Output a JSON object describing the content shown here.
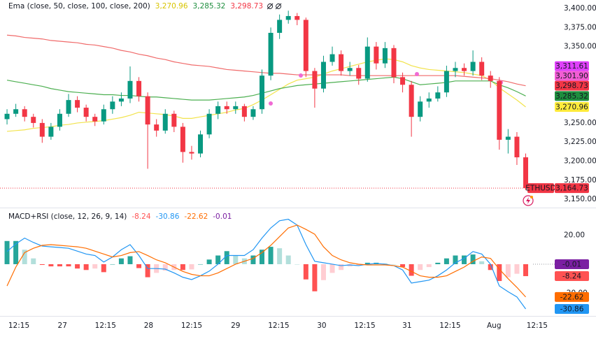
{
  "chart_data": [
    {
      "type": "candlestick",
      "title": "Ema (close, 50, close, 100, close, 200)",
      "symbol": "ETHUSD",
      "last_price_label": "3,164.73",
      "up_color": "#089981",
      "down_color": "#f23645",
      "xlim": [
        -0.8,
        62.7
      ],
      "ylim": [
        3141,
        3411
      ],
      "yticks": [
        {
          "value": 3400,
          "label": "3,400.00"
        },
        {
          "value": 3375,
          "label": "3,375.00"
        },
        {
          "value": 3350,
          "label": "3,350.00"
        },
        {
          "value": 3250,
          "label": "3,250.00"
        },
        {
          "value": 3225,
          "label": "3,225.00"
        },
        {
          "value": 3200,
          "label": "3,200.00"
        },
        {
          "value": 3175,
          "label": "3,175.00"
        },
        {
          "value": 3150,
          "label": "3,150.00"
        }
      ],
      "candles": {
        "open": [
          3255,
          3262,
          3268,
          3258,
          3250,
          3232,
          3245,
          3262,
          3280,
          3270,
          3258,
          3252,
          3268,
          3278,
          3282,
          3305,
          3285,
          3248,
          3240,
          3262,
          3245,
          3212,
          3210,
          3235,
          3262,
          3272,
          3268,
          3272,
          3258,
          3268,
          3312,
          3368,
          3385,
          3390,
          3385,
          3318,
          3295,
          3330,
          3340,
          3318,
          3322,
          3308,
          3350,
          3328,
          3348,
          3310,
          3300,
          3258,
          3278,
          3282,
          3290,
          3318,
          3322,
          3318,
          3330,
          3312,
          3305,
          3228,
          3232,
          3205
        ],
        "high": [
          3268,
          3275,
          3272,
          3262,
          3255,
          3250,
          3268,
          3288,
          3285,
          3274,
          3262,
          3274,
          3285,
          3290,
          3324,
          3310,
          3290,
          3255,
          3268,
          3266,
          3250,
          3220,
          3240,
          3268,
          3278,
          3278,
          3278,
          3275,
          3272,
          3320,
          3375,
          3392,
          3397,
          3394,
          3388,
          3322,
          3338,
          3350,
          3345,
          3330,
          3326,
          3362,
          3356,
          3356,
          3352,
          3316,
          3305,
          3285,
          3290,
          3298,
          3325,
          3330,
          3328,
          3345,
          3336,
          3318,
          3310,
          3242,
          3238,
          3210
        ],
        "low": [
          3248,
          3258,
          3252,
          3244,
          3224,
          3228,
          3240,
          3258,
          3264,
          3252,
          3246,
          3248,
          3262,
          3272,
          3276,
          3278,
          3190,
          3232,
          3236,
          3238,
          3198,
          3202,
          3205,
          3230,
          3255,
          3262,
          3262,
          3252,
          3254,
          3262,
          3306,
          3360,
          3380,
          3378,
          3310,
          3270,
          3290,
          3325,
          3312,
          3312,
          3300,
          3304,
          3320,
          3322,
          3302,
          3290,
          3232,
          3252,
          3270,
          3278,
          3284,
          3310,
          3312,
          3312,
          3306,
          3296,
          3215,
          3210,
          3195,
          3162
        ],
        "close": [
          3262,
          3268,
          3258,
          3250,
          3232,
          3245,
          3262,
          3280,
          3270,
          3258,
          3252,
          3268,
          3278,
          3282,
          3305,
          3285,
          3248,
          3240,
          3262,
          3245,
          3212,
          3210,
          3235,
          3262,
          3272,
          3268,
          3272,
          3258,
          3268,
          3312,
          3368,
          3385,
          3390,
          3385,
          3318,
          3295,
          3330,
          3340,
          3318,
          3322,
          3308,
          3350,
          3328,
          3348,
          3310,
          3300,
          3258,
          3278,
          3282,
          3290,
          3318,
          3322,
          3318,
          3330,
          3312,
          3305,
          3228,
          3232,
          3205,
          3164.73
        ]
      },
      "lines": [
        {
          "color": "#f2e34c",
          "label_color": "#ffeb3b",
          "label_text_color": "#131722",
          "last_value_label": "3,270.96",
          "values": [
            3239,
            3240,
            3241,
            3243,
            3244,
            3245,
            3247,
            3248,
            3250,
            3251,
            3252,
            3253,
            3255,
            3257,
            3260,
            3264,
            3263,
            3262,
            3261,
            3259,
            3256,
            3256,
            3258,
            3260,
            3262,
            3264,
            3267,
            3269,
            3274,
            3280,
            3287,
            3294,
            3301,
            3306,
            3308,
            3310,
            3314,
            3318,
            3321,
            3324,
            3327,
            3330,
            3332,
            3334,
            3333,
            3330,
            3325,
            3322,
            3320,
            3319,
            3318,
            3317,
            3316,
            3314,
            3312,
            3306,
            3296,
            3288,
            3280,
            3270.96
          ]
        },
        {
          "color": "#4caf50",
          "label_color": "#1e8e3e",
          "label_text_color": "#ffffff",
          "last_value_label": "3,285.32",
          "values": [
            3306,
            3304,
            3302,
            3300,
            3298,
            3295,
            3293,
            3291,
            3290,
            3289,
            3288,
            3287,
            3287,
            3286,
            3286,
            3285,
            3284,
            3284,
            3283,
            3282,
            3281,
            3280,
            3280,
            3280,
            3281,
            3282,
            3283,
            3284,
            3286,
            3289,
            3292,
            3295,
            3297,
            3299,
            3300,
            3301,
            3302,
            3303,
            3304,
            3305,
            3306,
            3307,
            3308,
            3309,
            3310,
            3308,
            3304,
            3300,
            3301,
            3302,
            3303,
            3305,
            3305,
            3305,
            3305,
            3305,
            3300,
            3296,
            3291,
            3285.32
          ]
        },
        {
          "color": "#f06a6a",
          "label_color": "#f23645",
          "label_text_color": "#ffffff",
          "last_value_label": "3,298.73",
          "values": [
            3365,
            3364,
            3362,
            3361,
            3360,
            3358,
            3357,
            3356,
            3355,
            3353,
            3352,
            3350,
            3348,
            3345,
            3343,
            3340,
            3338,
            3335,
            3333,
            3330,
            3328,
            3326,
            3325,
            3324,
            3322,
            3320,
            3319,
            3318,
            3317,
            3316,
            3315,
            3315,
            3314,
            3313,
            3313,
            3313,
            3313,
            3313,
            3313,
            3312,
            3312,
            3312,
            3312,
            3312,
            3312,
            3312,
            3312,
            3312,
            3312,
            3312,
            3312,
            3312,
            3311,
            3310,
            3309,
            3308,
            3306,
            3304,
            3301,
            3298.73
          ]
        }
      ],
      "extra_labels": [
        {
          "value": 3311.61,
          "label": "3,311.61",
          "color": "#e040fb"
        },
        {
          "value": 3301.9,
          "label": "3,301.90",
          "color": "#f25dd4"
        }
      ]
    },
    {
      "type": "macd",
      "title": "MACD+RSI (close, 12, 26, 9, 14)",
      "xlim": [
        -0.8,
        62.7
      ],
      "ylim": [
        -35.7,
        37.6
      ],
      "yticks": [
        {
          "value": 20,
          "label": "20.00"
        },
        {
          "value": -20,
          "label": "-20.00"
        }
      ],
      "xticks": [
        {
          "value": 1.35,
          "label": "12:15"
        },
        {
          "value": 6.3,
          "label": "27"
        },
        {
          "value": 11.2,
          "label": "12:15"
        },
        {
          "value": 16.1,
          "label": "28"
        },
        {
          "value": 21.0,
          "label": "12:15"
        },
        {
          "value": 26.0,
          "label": "29"
        },
        {
          "value": 30.9,
          "label": "12:15"
        },
        {
          "value": 35.8,
          "label": "30"
        },
        {
          "value": 40.7,
          "label": "12:15"
        },
        {
          "value": 45.5,
          "label": "31"
        },
        {
          "value": 50.4,
          "label": "12:15"
        },
        {
          "value": 55.4,
          "label": "Aug"
        },
        {
          "value": 60.3,
          "label": "12:15"
        }
      ],
      "histogram": {
        "colors": [
          "#26a69a",
          "#b2dfdb",
          "#ffcdd2",
          "#ff5252"
        ],
        "values": [
          16,
          16,
          10,
          4,
          -0.5,
          -1.5,
          -1.5,
          -1.5,
          -3,
          -4,
          -3,
          -5.5,
          0,
          4,
          5.5,
          -2.7,
          -9,
          -6,
          -4.4,
          -4,
          -4,
          -3.6,
          0,
          3.2,
          6,
          9,
          6,
          4,
          6,
          10,
          12,
          11,
          6,
          0,
          -10.5,
          -18.7,
          -11,
          -6,
          -4,
          -1.5,
          -1,
          1,
          1,
          0.5,
          0,
          -2,
          -8,
          -4,
          -2,
          1,
          4,
          6,
          6,
          6.7,
          2,
          -4,
          -11.6,
          -9,
          -6.6,
          -8.24
        ]
      },
      "macd": {
        "color": "#2196f3",
        "values": [
          8.7,
          14,
          18,
          15,
          12.5,
          12,
          11.5,
          11,
          9,
          7,
          6,
          1.5,
          5,
          10,
          13.5,
          6,
          -3,
          -3,
          -3.4,
          -6,
          -9,
          -10.6,
          -8,
          -4.8,
          0,
          6,
          6,
          6,
          10,
          18,
          25,
          30,
          31,
          27,
          13.5,
          2,
          1,
          0,
          -1,
          -0.5,
          -1,
          0,
          0.5,
          0,
          -1,
          -4,
          -13,
          -12,
          -11,
          -8,
          -4,
          1,
          4,
          8.7,
          7,
          0,
          -15,
          -19,
          -22.6,
          -30.86
        ]
      },
      "signal": {
        "color": "#ff6d00",
        "values": [
          -15,
          -2,
          8,
          11,
          13,
          13.5,
          13,
          12.5,
          12,
          11,
          9,
          7,
          5,
          6,
          8,
          8.7,
          6,
          3,
          1,
          -2,
          -5,
          -7,
          -8,
          -8,
          -6,
          -3,
          0,
          2,
          4,
          8,
          13,
          19,
          25,
          27,
          24,
          20.7,
          12,
          6,
          3,
          1,
          0,
          -0.5,
          -0.5,
          -0.5,
          -1,
          -2,
          -5,
          -8,
          -9,
          -9,
          -8,
          -5,
          -2,
          2,
          5,
          4,
          -3.4,
          -10,
          -16,
          -22.62
        ]
      },
      "rsi": {
        "value": -0.01,
        "color": "#7b1fa2"
      }
    }
  ]
}
